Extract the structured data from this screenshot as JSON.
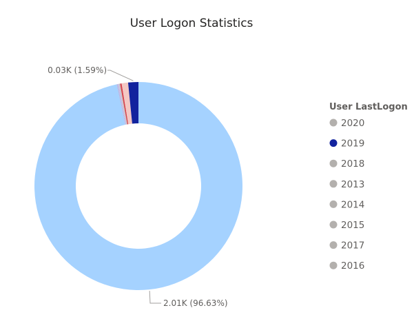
{
  "chart_data": {
    "type": "pie",
    "variant": "donut",
    "title": "User Logon Statistics",
    "legend_title": "User LastLogon",
    "legend_position": "right",
    "slices": [
      {
        "label": "2020",
        "value": 2.01,
        "percent": 96.63,
        "color": "#a5d2ff",
        "legend_color": "#b3b0ad",
        "data_label": "2.01K (96.63%)"
      },
      {
        "label": "2019",
        "value": 0.03,
        "percent": 1.59,
        "color": "#12239e",
        "legend_color": "#12239e",
        "data_label": "0.03K (1.59%)"
      },
      {
        "label": "2018",
        "value": 0.02,
        "percent": 1.0,
        "color": "#f4c7c3",
        "legend_color": "#b3b0ad",
        "data_label": ""
      },
      {
        "label": "2013",
        "value": 0.005,
        "percent": 0.25,
        "color": "#d64550",
        "legend_color": "#b3b0ad",
        "data_label": ""
      },
      {
        "label": "2014",
        "value": 0.004,
        "percent": 0.2,
        "color": "#c8c6c4",
        "legend_color": "#b3b0ad",
        "data_label": ""
      },
      {
        "label": "2015",
        "value": 0.003,
        "percent": 0.15,
        "color": "#c8b8e8",
        "legend_color": "#b3b0ad",
        "data_label": ""
      },
      {
        "label": "2017",
        "value": 0.002,
        "percent": 0.1,
        "color": "#b7b3e0",
        "legend_color": "#b3b0ad",
        "data_label": ""
      },
      {
        "label": "2016",
        "value": 0.002,
        "percent": 0.08,
        "color": "#a6b8e8",
        "legend_color": "#b3b0ad",
        "data_label": ""
      }
    ]
  }
}
